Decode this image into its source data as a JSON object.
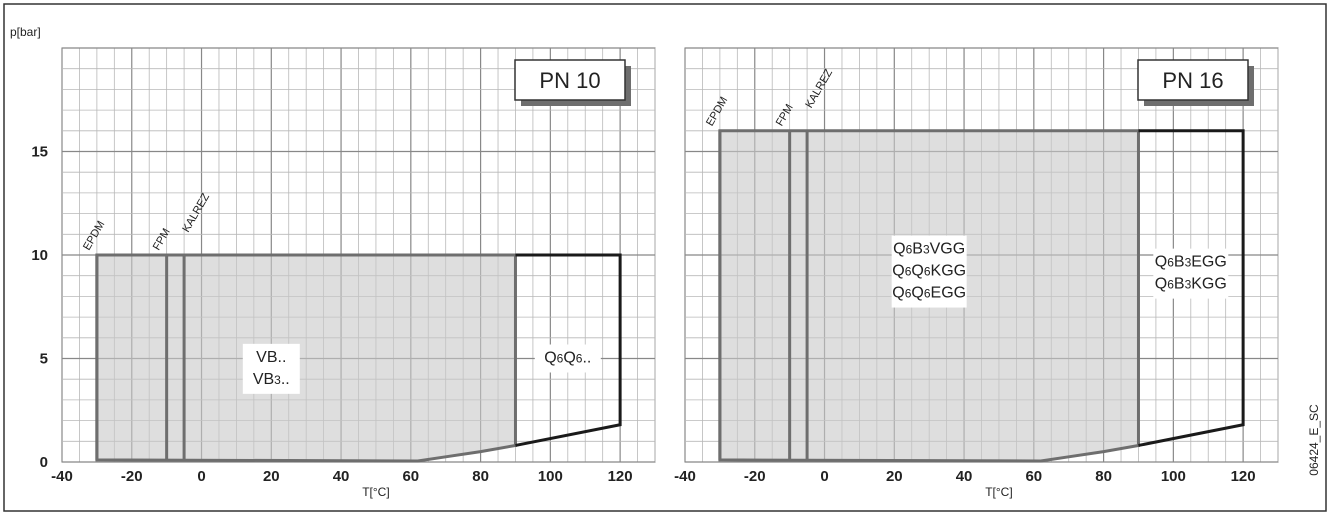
{
  "figure": {
    "ylabel": "p[bar]",
    "xlabel": "T[°C]",
    "code": "06424_E_SC"
  },
  "chart_data": [
    {
      "type": "area",
      "title": "PN 10",
      "xlabel": "T[°C]",
      "ylabel": "p[bar]",
      "xlim": [
        -40,
        130
      ],
      "ylim": [
        0,
        20
      ],
      "xticks": [
        -40,
        -20,
        0,
        20,
        40,
        60,
        80,
        100,
        120
      ],
      "yticks": [
        0,
        5,
        10,
        15
      ],
      "grid": true,
      "shaded_region": {
        "labels": [
          "VB..",
          "VB3.."
        ],
        "points": [
          [
            -30,
            0.1
          ],
          [
            -30,
            10
          ],
          [
            90,
            10
          ],
          [
            90,
            0.8
          ],
          [
            80,
            0.5
          ],
          [
            70,
            0.25
          ],
          [
            62,
            0.05
          ],
          [
            -30,
            0.1
          ]
        ]
      },
      "outline_region": {
        "labels": [
          "Q6Q6.."
        ],
        "points": [
          [
            90,
            10
          ],
          [
            120,
            10
          ],
          [
            120,
            1.8
          ],
          [
            90,
            0.8
          ]
        ]
      },
      "material_lines": [
        {
          "name": "EPDM",
          "x": -30
        },
        {
          "name": "FPM",
          "x": -10
        },
        {
          "name": "KALREZ",
          "x": -5
        }
      ]
    },
    {
      "type": "area",
      "title": "PN 16",
      "xlabel": "T[°C]",
      "xlim": [
        -40,
        130
      ],
      "ylim": [
        0,
        20
      ],
      "xticks": [
        -40,
        -20,
        0,
        20,
        40,
        60,
        80,
        100,
        120
      ],
      "grid": true,
      "shaded_region": {
        "labels": [
          "Q6B3VGG",
          "Q6Q6KGG",
          "Q6Q6EGG"
        ],
        "points": [
          [
            -30,
            0.1
          ],
          [
            -30,
            16
          ],
          [
            90,
            16
          ],
          [
            90,
            0.8
          ],
          [
            80,
            0.5
          ],
          [
            70,
            0.25
          ],
          [
            62,
            0.05
          ],
          [
            -30,
            0.1
          ]
        ]
      },
      "outline_region": {
        "labels": [
          "Q6B3EGG",
          "Q6B3KGG"
        ],
        "points": [
          [
            90,
            16
          ],
          [
            120,
            16
          ],
          [
            120,
            1.8
          ],
          [
            90,
            0.8
          ]
        ]
      },
      "material_lines": [
        {
          "name": "EPDM",
          "x": -30
        },
        {
          "name": "FPM",
          "x": -10
        },
        {
          "name": "KALREZ",
          "x": -5
        }
      ]
    }
  ]
}
